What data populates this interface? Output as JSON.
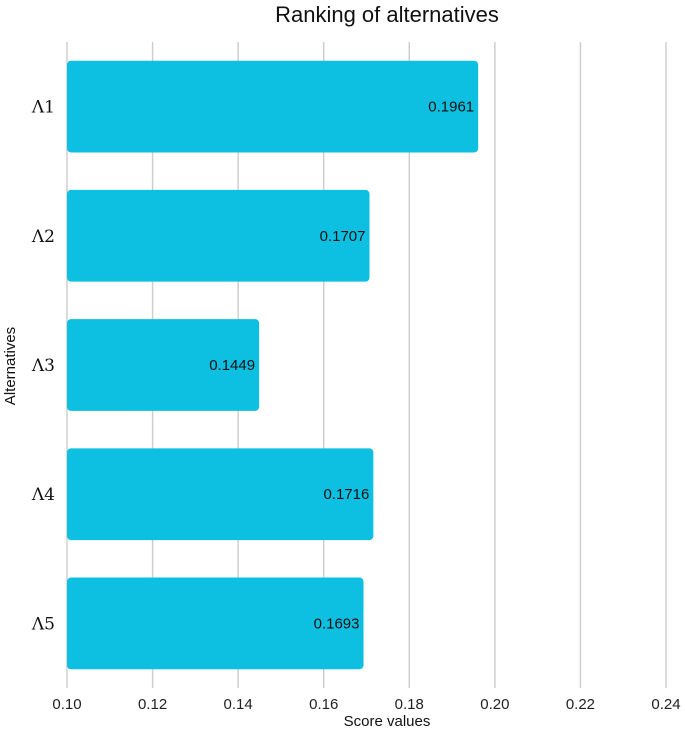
{
  "chart_data": {
    "type": "bar",
    "orientation": "horizontal",
    "title": "Ranking of alternatives",
    "xlabel": "Score values",
    "ylabel": "Alternatives",
    "categories": [
      "Λ1",
      "Λ2",
      "Λ3",
      "Λ4",
      "Λ5"
    ],
    "values": [
      0.1961,
      0.1707,
      0.1449,
      0.1716,
      0.1693
    ],
    "data_labels": [
      "0.1961",
      "0.1707",
      "0.1449",
      "0.1716",
      "0.1693"
    ],
    "xlim": [
      0.1,
      0.24
    ],
    "xticks": [
      0.1,
      0.12,
      0.14,
      0.16,
      0.18,
      0.2,
      0.22,
      0.24
    ],
    "xtick_labels": [
      "0.10",
      "0.12",
      "0.14",
      "0.16",
      "0.18",
      "0.20",
      "0.22",
      "0.24"
    ],
    "grid": "vertical",
    "bar_color": "#0dbfe0"
  }
}
